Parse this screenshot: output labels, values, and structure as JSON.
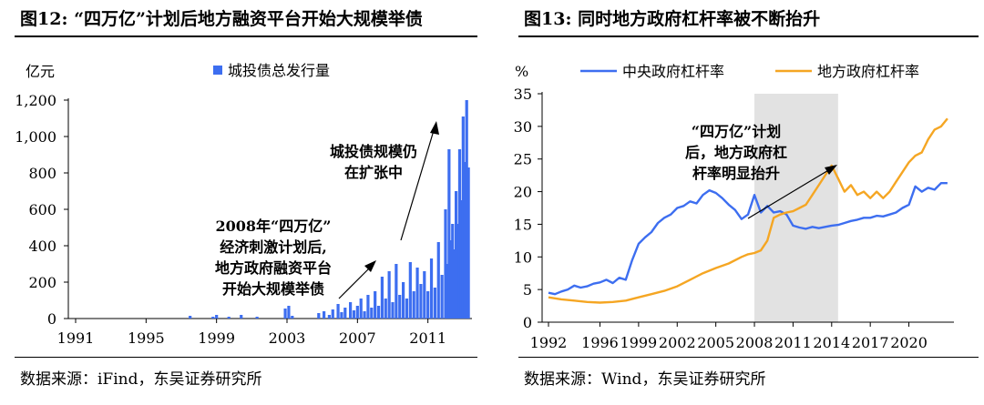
{
  "panels": [
    {
      "title": "图12: “四万亿”计划后地方融资平台开始大规模举债",
      "source": "数据来源：iFind，东吴证券研究所",
      "chart_data": {
        "type": "bar",
        "ylabel": "亿元",
        "legend": "城投债总发行量",
        "legend_position": "top",
        "ylim": [
          0,
          1200
        ],
        "yticks": [
          0,
          200,
          400,
          600,
          800,
          1000,
          1200
        ],
        "ytick_labels": [
          "0",
          "200",
          "400",
          "600",
          "800",
          "1,000",
          "1,200"
        ],
        "xlim": [
          1991,
          2013.5
        ],
        "xticks": [
          1991,
          1995,
          1999,
          2003,
          2007,
          2011
        ],
        "bar_color": "#3d6ef0",
        "annotations": [
          {
            "lines": [
              "2008年“四万亿”",
              "经济刺激计划后,",
              "地方政府融资平台",
              "开始大规模举债"
            ]
          },
          {
            "lines": [
              "城投债规模仍",
              "在扩张中"
            ]
          }
        ],
        "series": [
          {
            "name": "城投债总发行量",
            "x": [
              1997.5,
              1998.8,
              1999.0,
              1999.7,
              2000.4,
              2001.3,
              2002.9,
              2003.1,
              2003.3,
              2004.8,
              2005.1,
              2005.4,
              2005.6,
              2005.9,
              2006.1,
              2006.3,
              2006.6,
              2006.8,
              2007.0,
              2007.2,
              2007.4,
              2007.6,
              2007.8,
              2008.0,
              2008.2,
              2008.4,
              2008.6,
              2008.8,
              2009.0,
              2009.2,
              2009.4,
              2009.6,
              2009.8,
              2010.0,
              2010.2,
              2010.4,
              2010.6,
              2010.8,
              2011.0,
              2011.2,
              2011.4,
              2011.6,
              2011.8,
              2012.0,
              2012.1,
              2012.2,
              2012.3,
              2012.4,
              2012.5,
              2012.6,
              2012.7,
              2012.8,
              2012.9,
              2013.0,
              2013.1,
              2013.2,
              2013.3
            ],
            "values": [
              15,
              10,
              20,
              10,
              20,
              10,
              55,
              70,
              15,
              30,
              40,
              20,
              50,
              80,
              35,
              60,
              90,
              45,
              70,
              110,
              40,
              130,
              60,
              150,
              70,
              230,
              110,
              260,
              90,
              300,
              130,
              200,
              110,
              310,
              150,
              280,
              190,
              260,
              150,
              330,
              170,
              420,
              240,
              600,
              300,
              930,
              430,
              520,
              380,
              700,
              520,
              930,
              650,
              1110,
              860,
              1200,
              830
            ]
          }
        ]
      }
    },
    {
      "title": "图13: 同时地方政府杠杆率被不断抬升",
      "source": "数据来源：Wind，东吴证券研究所",
      "chart_data": {
        "type": "line",
        "ylabel": "%",
        "ylim": [
          0,
          35
        ],
        "yticks": [
          0,
          5,
          10,
          15,
          20,
          25,
          30,
          35
        ],
        "xlim": [
          1992,
          2023.5
        ],
        "xticks": [
          1992,
          1996,
          1999,
          2002,
          2005,
          2008,
          2011,
          2014,
          2017,
          2020
        ],
        "shaded_region": [
          2008,
          2014.5
        ],
        "legend_position": "top",
        "annotation": {
          "lines": [
            "“四万亿”计划",
            "后，地方政府杠",
            "杆率明显抬升"
          ]
        },
        "series": [
          {
            "name": "中央政府杠杆率",
            "color": "#3d6ef0",
            "x": [
              1992,
              1992.5,
              1993,
              1993.5,
              1994,
              1994.5,
              1995,
              1995.5,
              1996,
              1996.5,
              1997,
              1997.5,
              1998,
              1998.5,
              1999,
              1999.5,
              2000,
              2000.5,
              2001,
              2001.5,
              2002,
              2002.5,
              2003,
              2003.5,
              2004,
              2004.5,
              2005,
              2005.5,
              2006,
              2006.5,
              2007,
              2007.5,
              2008,
              2008.5,
              2009,
              2009.5,
              2010,
              2010.5,
              2011,
              2011.5,
              2012,
              2012.5,
              2013,
              2013.5,
              2014,
              2014.5,
              2015,
              2015.5,
              2016,
              2016.5,
              2017,
              2017.5,
              2018,
              2018.5,
              2019,
              2019.5,
              2020,
              2020.5,
              2021,
              2021.5,
              2022,
              2022.5,
              2023
            ],
            "values": [
              4.5,
              4.3,
              4.7,
              5.0,
              5.6,
              5.3,
              5.5,
              5.9,
              6.1,
              6.5,
              6.0,
              6.8,
              6.5,
              9.5,
              12.0,
              13.0,
              13.8,
              15.2,
              16.0,
              16.5,
              17.5,
              17.8,
              18.5,
              18.2,
              19.5,
              20.2,
              19.8,
              19.0,
              18.0,
              17.2,
              15.8,
              16.5,
              19.5,
              16.8,
              17.8,
              16.8,
              17.0,
              16.5,
              14.8,
              14.5,
              14.3,
              14.6,
              14.4,
              14.6,
              14.8,
              14.9,
              15.2,
              15.5,
              15.7,
              16.0,
              16.0,
              16.3,
              16.2,
              16.5,
              16.8,
              17.5,
              18.0,
              20.8,
              20.0,
              20.6,
              20.3,
              21.3,
              21.3
            ]
          },
          {
            "name": "地方政府杠杆率",
            "color": "#f5a623",
            "x": [
              1992,
              1993,
              1994,
              1995,
              1996,
              1997,
              1998,
              1999,
              2000,
              2001,
              2002,
              2003,
              2004,
              2005,
              2006,
              2007,
              2007.5,
              2008,
              2008.5,
              2009,
              2009.5,
              2010,
              2010.5,
              2011,
              2011.5,
              2012,
              2012.5,
              2013,
              2013.5,
              2014,
              2014.5,
              2015,
              2015.5,
              2016,
              2016.5,
              2017,
              2017.5,
              2018,
              2018.5,
              2019,
              2019.5,
              2020,
              2020.5,
              2021,
              2021.5,
              2022,
              2022.5,
              2023
            ],
            "values": [
              3.8,
              3.5,
              3.3,
              3.1,
              3.0,
              3.1,
              3.3,
              3.8,
              4.3,
              4.8,
              5.5,
              6.5,
              7.5,
              8.3,
              9.0,
              10.0,
              10.4,
              10.6,
              11.0,
              12.5,
              16.0,
              16.5,
              16.8,
              17.0,
              17.5,
              18.0,
              19.5,
              21.0,
              22.5,
              24.0,
              22.0,
              20.0,
              21.0,
              19.5,
              20.0,
              19.0,
              20.0,
              19.0,
              20.0,
              21.5,
              23.0,
              24.5,
              25.5,
              26.0,
              28.0,
              29.5,
              30.0,
              31.2
            ]
          }
        ]
      }
    }
  ]
}
